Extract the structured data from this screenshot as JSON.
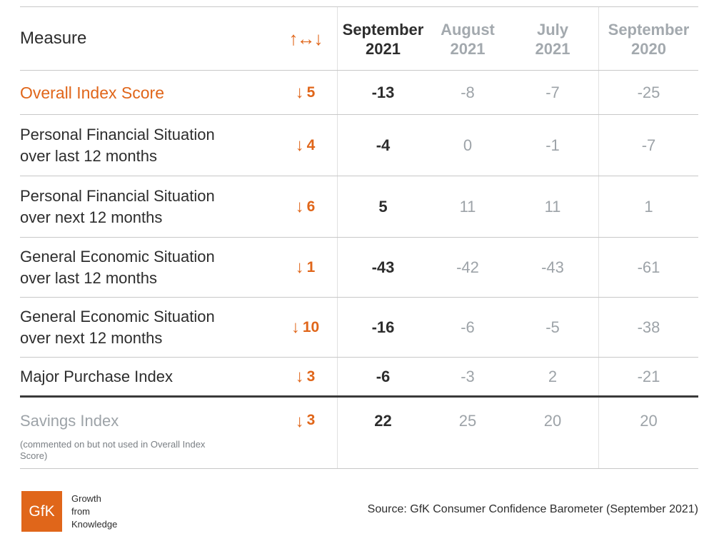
{
  "header": {
    "measure_label": "Measure",
    "change_icon": "↑↔↓",
    "columns": [
      {
        "line1": "September",
        "line2": "2021"
      },
      {
        "line1": "August",
        "line2": "2021"
      },
      {
        "line1": "July",
        "line2": "2021"
      },
      {
        "line1": "September",
        "line2": "2020"
      }
    ]
  },
  "rows": [
    {
      "line1": "Overall Index Score",
      "line2": "",
      "arrow": "↓",
      "change": "5",
      "values": [
        "-13",
        "-8",
        "-7",
        "-25"
      ]
    },
    {
      "line1": "Personal Financial Situation",
      "line2": "over last 12 months",
      "arrow": "↓",
      "change": "4",
      "values": [
        "-4",
        "0",
        "-1",
        "-7"
      ]
    },
    {
      "line1": "Personal Financial Situation",
      "line2": "over next 12 months",
      "arrow": "↓",
      "change": "6",
      "values": [
        "5",
        "11",
        "11",
        "1"
      ]
    },
    {
      "line1": "General Economic Situation",
      "line2": "over last 12 months",
      "arrow": "↓",
      "change": "1",
      "values": [
        "-43",
        "-42",
        "-43",
        "-61"
      ]
    },
    {
      "line1": "General Economic Situation",
      "line2": "over next 12 months",
      "arrow": "↓",
      "change": "10",
      "values": [
        "-16",
        "-6",
        "-5",
        "-38"
      ]
    },
    {
      "line1": "Major Purchase Index",
      "line2": "",
      "arrow": "↓",
      "change": "3",
      "values": [
        "-6",
        "-3",
        "2",
        "-21"
      ]
    },
    {
      "line1": "Savings Index",
      "line2": "(commented on but not used in Overall Index Score)",
      "arrow": "↓",
      "change": "3",
      "values": [
        "22",
        "25",
        "20",
        "20"
      ]
    }
  ],
  "footer": {
    "logo_text": "GfK",
    "tagline": [
      "Growth",
      "from",
      "Knowledge"
    ],
    "source": "Source: GfK Consumer Confidence Barometer (September 2021)"
  },
  "colors": {
    "accent": "#e0661a",
    "muted": "#9da3a8",
    "text": "#2d2d2d"
  }
}
